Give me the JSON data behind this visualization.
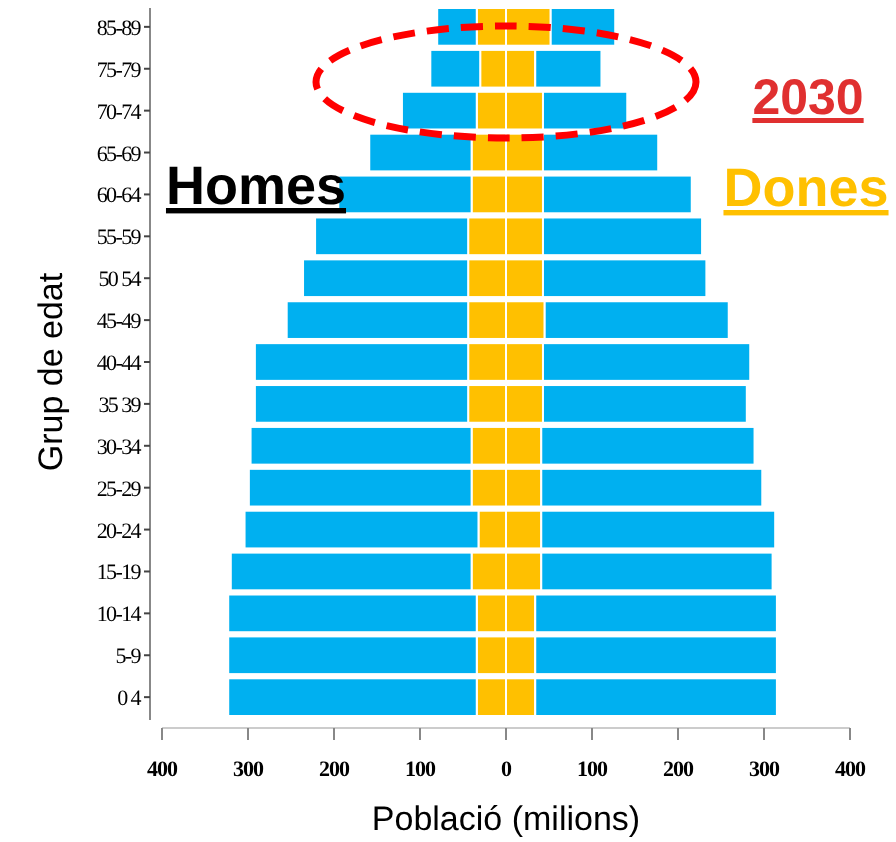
{
  "chart_data": {
    "type": "bar",
    "orientation": "horizontal",
    "stacked": true,
    "xlabel": "Població (milions)",
    "ylabel": "Grup de edat",
    "categories": [
      "85-89",
      "75-79",
      "70-74",
      "65-69",
      "60-64",
      "55-59",
      "50 54",
      "45-49",
      "40-44",
      "35 39",
      "30-34",
      "25-29",
      "20-24",
      "15-19",
      "10-14",
      "5-9",
      "0 4"
    ],
    "series": [
      {
        "color": "#ffc000",
        "values": [
          -34,
          -30,
          -34,
          -40,
          -40,
          -44,
          -44,
          -44,
          -44,
          -44,
          -40,
          -40,
          -32,
          -40,
          -34,
          -34,
          -34
        ]
      },
      {
        "color": "#00b0f0",
        "values": [
          -46,
          -58,
          -87,
          -119,
          -155,
          -178,
          -192,
          -211,
          -248,
          -248,
          -257,
          -259,
          -272,
          -280,
          -289,
          -289,
          -289
        ]
      },
      {
        "color": "#ffc000",
        "values": [
          52,
          34,
          43,
          43,
          43,
          43,
          43,
          45,
          43,
          43,
          41,
          41,
          41,
          41,
          34,
          34,
          34
        ]
      },
      {
        "color": "#00b0f0",
        "values": [
          75,
          77,
          98,
          134,
          173,
          185,
          190,
          214,
          241,
          237,
          248,
          257,
          272,
          269,
          281,
          281,
          281
        ]
      }
    ],
    "xlim": [
      -400,
      400
    ],
    "xticks": [
      {
        "value": -400,
        "label": "400"
      },
      {
        "value": -300,
        "label": "300"
      },
      {
        "value": -200,
        "label": "200"
      },
      {
        "value": -100,
        "label": "100"
      },
      0,
      100,
      200,
      300,
      400
    ],
    "annotations": [
      "Homes",
      "Dones",
      "2030"
    ]
  }
}
